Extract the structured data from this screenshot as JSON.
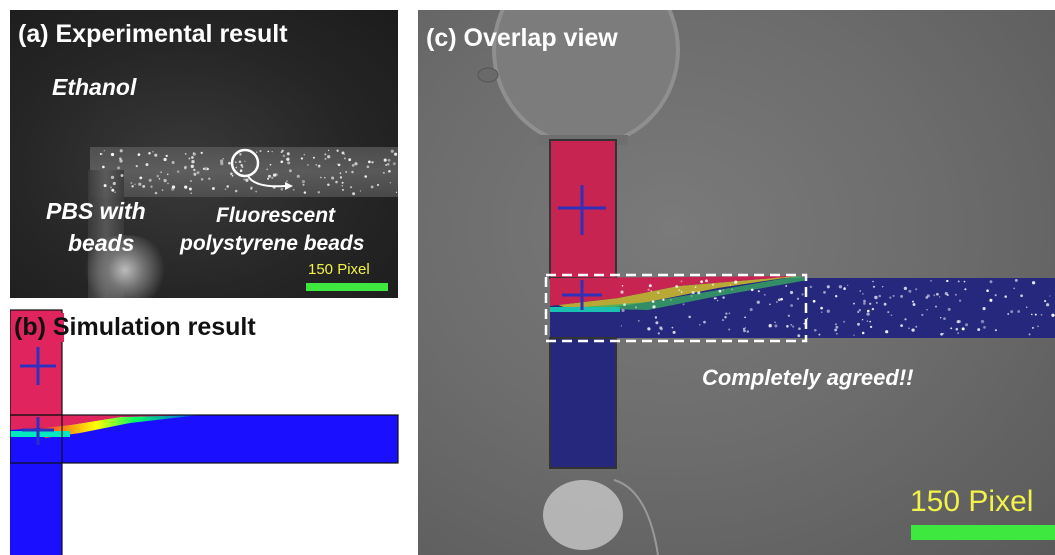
{
  "panel_a": {
    "title": "(a) Experimental result",
    "label_ethanol": "Ethanol",
    "label_pbs_line1": "PBS with",
    "label_pbs_line2": "beads",
    "label_fluor_line1": "Fluorescent",
    "label_fluor_line2": "polystyrene beads",
    "scale_label": "150 Pixel"
  },
  "panel_b": {
    "title": "(b) Simulation result"
  },
  "panel_c": {
    "title": "(c) Overlap view",
    "annotation": "Completely agreed!!",
    "scale_label": "150 Pixel"
  },
  "colors": {
    "ethanol_region": "#e0245e",
    "pbs_region": "#1a1aff",
    "scale_bar": "#3ee83e",
    "scale_text": "#f2f24a"
  }
}
